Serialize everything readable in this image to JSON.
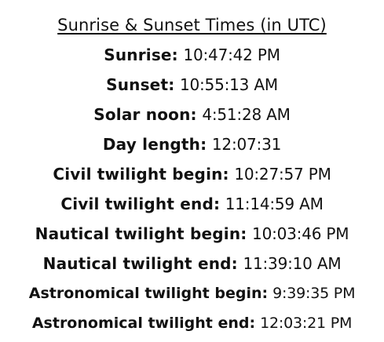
{
  "title": "Sunrise & Sunset Times (in UTC)",
  "rows": [
    {
      "label": "Sunrise:",
      "value": "10:47:42 PM"
    },
    {
      "label": "Sunset:",
      "value": "10:55:13 AM"
    },
    {
      "label": "Solar noon:",
      "value": "4:51:28 AM"
    },
    {
      "label": "Day length:",
      "value": "12:07:31"
    },
    {
      "label": "Civil twilight begin:",
      "value": "10:27:57 PM"
    },
    {
      "label": "Civil twilight end:",
      "value": "11:14:59 AM"
    },
    {
      "label": "Nautical twilight begin:",
      "value": "10:03:46 PM"
    },
    {
      "label": "Nautical twilight end:",
      "value": "11:39:10 AM"
    },
    {
      "label": "Astronomical twilight begin:",
      "value": "9:39:35 PM"
    },
    {
      "label": "Astronomical twilight end:",
      "value": "12:03:21 PM"
    }
  ]
}
